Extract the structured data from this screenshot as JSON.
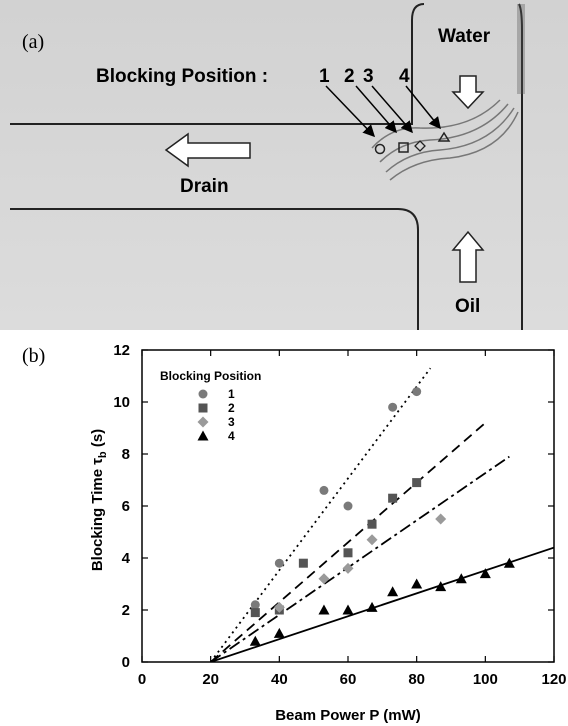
{
  "panel_a": {
    "label": "(a)",
    "blocking_title": "Blocking Position :",
    "positions": [
      "1",
      "2",
      "3",
      "4"
    ],
    "water": "Water",
    "drain": "Drain",
    "oil": "Oil"
  },
  "panel_b": {
    "label": "(b)"
  },
  "chart_data": {
    "type": "scatter",
    "xlabel": "Beam Power P (mW)",
    "ylabel_main": "Blocking Time τ",
    "ylabel_sub": "b",
    "ylabel_unit": " (s)",
    "xlim": [
      0,
      120
    ],
    "ylim": [
      0,
      12
    ],
    "xticks": [
      0,
      20,
      40,
      60,
      80,
      100,
      120
    ],
    "yticks": [
      0,
      2,
      4,
      6,
      8,
      10,
      12
    ],
    "xtick_labels": [
      "0",
      "20",
      "40",
      "60",
      "80",
      "100",
      "120"
    ],
    "ytick_labels": [
      "0",
      "2",
      "4",
      "6",
      "8",
      "10",
      "12"
    ],
    "grid": false,
    "legend_title": "Blocking Position",
    "legend_position": "top-left",
    "series": [
      {
        "name": "1",
        "marker": "circle",
        "color": "#7a7a7a",
        "line": "dotted",
        "x": [
          33,
          40,
          53,
          60,
          73,
          80
        ],
        "y": [
          2.2,
          3.8,
          6.6,
          6.0,
          9.8,
          10.4
        ],
        "fit": [
          [
            20,
            0
          ],
          [
            84,
            11.3
          ]
        ]
      },
      {
        "name": "2",
        "marker": "square",
        "color": "#555555",
        "line": "dashed",
        "x": [
          33,
          40,
          47,
          60,
          67,
          73,
          80
        ],
        "y": [
          1.9,
          2.0,
          3.8,
          4.2,
          5.3,
          6.3,
          6.9
        ],
        "fit": [
          [
            20,
            0
          ],
          [
            100,
            9.2
          ]
        ]
      },
      {
        "name": "3",
        "marker": "diamond",
        "color": "#9a9a9a",
        "line": "dash-dot",
        "x": [
          40,
          53,
          60,
          67,
          87
        ],
        "y": [
          2.1,
          3.2,
          3.6,
          4.7,
          5.5
        ],
        "fit": [
          [
            20,
            0
          ],
          [
            107,
            7.9
          ]
        ]
      },
      {
        "name": "4",
        "marker": "triangle",
        "color": "#000000",
        "line": "solid",
        "x": [
          33,
          40,
          53,
          60,
          67,
          73,
          80,
          87,
          93,
          100,
          107
        ],
        "y": [
          0.8,
          1.1,
          2.0,
          2.0,
          2.1,
          2.7,
          3.0,
          2.9,
          3.2,
          3.4,
          3.8
        ],
        "fit": [
          [
            20,
            0
          ],
          [
            120,
            4.4
          ]
        ]
      }
    ]
  }
}
